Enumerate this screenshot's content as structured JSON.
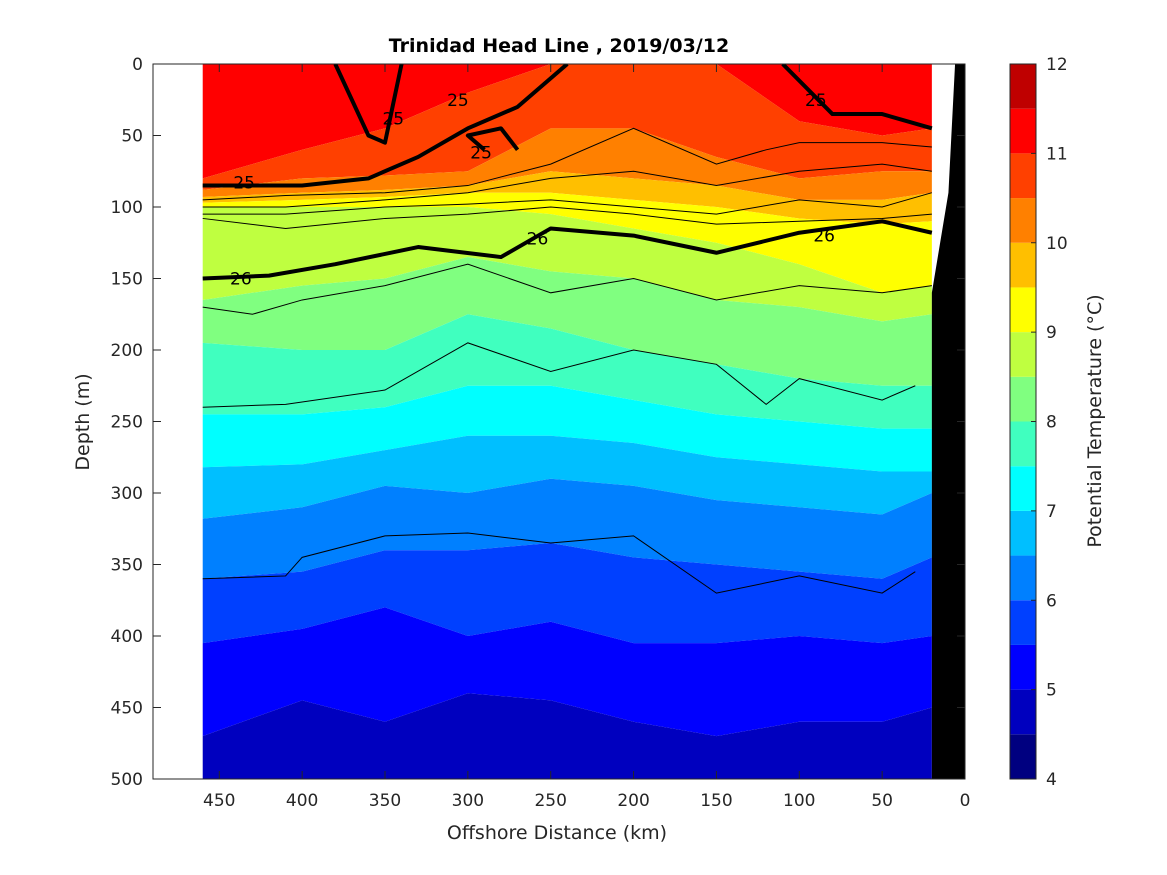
{
  "chart_data": {
    "type": "heatmap",
    "title": "Trinidad Head Line , 2019/03/12",
    "xlabel": "Offshore Distance (km)",
    "ylabel": "Depth (m)",
    "xlim": [
      490,
      0
    ],
    "ylim": [
      500,
      0
    ],
    "x_reversed": true,
    "y_reversed": true,
    "x_ticks": [
      450,
      400,
      350,
      300,
      250,
      200,
      150,
      100,
      50,
      0
    ],
    "y_ticks": [
      0,
      50,
      100,
      150,
      200,
      250,
      300,
      350,
      400,
      450,
      500
    ],
    "colorbar": {
      "label": "Potential Temperature (°C)",
      "ticks": [
        4,
        5,
        6,
        7,
        8,
        9,
        10,
        11,
        12
      ],
      "range": [
        4,
        12
      ],
      "colormap": "jet",
      "levels": [
        {
          "min": 4.0,
          "color": "#000080"
        },
        {
          "min": 4.5,
          "color": "#0000bf"
        },
        {
          "min": 5.0,
          "color": "#0000ff"
        },
        {
          "min": 5.5,
          "color": "#0040ff"
        },
        {
          "min": 6.0,
          "color": "#0080ff"
        },
        {
          "min": 6.5,
          "color": "#00bfff"
        },
        {
          "min": 7.0,
          "color": "#00ffff"
        },
        {
          "min": 7.5,
          "color": "#40ffbf"
        },
        {
          "min": 8.0,
          "color": "#80ff80"
        },
        {
          "min": 8.5,
          "color": "#bfff40"
        },
        {
          "min": 9.0,
          "color": "#ffff00"
        },
        {
          "min": 9.5,
          "color": "#ffbf00"
        },
        {
          "min": 10.0,
          "color": "#ff8000"
        },
        {
          "min": 10.5,
          "color": "#ff4000"
        },
        {
          "min": 11.0,
          "color": "#ff0000"
        },
        {
          "min": 11.5,
          "color": "#bf0000"
        }
      ]
    },
    "data_extent_km": [
      460,
      20
    ],
    "bands": [
      {
        "level": 11.0,
        "x": [
          460,
          400,
          350,
          300,
          250,
          200,
          150,
          100,
          50,
          20
        ],
        "top": [
          0,
          0,
          0,
          0,
          0,
          0,
          0,
          0,
          0,
          0
        ],
        "bottom": [
          80,
          60,
          45,
          20,
          0,
          0,
          0,
          40,
          50,
          45
        ]
      },
      {
        "level": 10.5,
        "x": [
          460,
          400,
          350,
          300,
          250,
          200,
          150,
          100,
          50,
          20
        ],
        "top": [
          80,
          60,
          45,
          20,
          0,
          0,
          0,
          40,
          50,
          45
        ],
        "bottom": [
          88,
          80,
          78,
          75,
          45,
          45,
          65,
          80,
          75,
          75
        ]
      },
      {
        "level": 10.0,
        "x": [
          460,
          400,
          350,
          300,
          250,
          200,
          150,
          100,
          50,
          20
        ],
        "top": [
          88,
          80,
          78,
          75,
          45,
          45,
          65,
          80,
          75,
          75
        ],
        "bottom": [
          93,
          90,
          88,
          85,
          75,
          80,
          85,
          95,
          95,
          90
        ]
      },
      {
        "level": 9.5,
        "x": [
          460,
          400,
          350,
          300,
          250,
          200,
          150,
          100,
          50,
          20
        ],
        "top": [
          93,
          90,
          88,
          85,
          75,
          80,
          85,
          95,
          95,
          90
        ],
        "bottom": [
          97,
          95,
          93,
          90,
          90,
          95,
          100,
          108,
          112,
          110
        ]
      },
      {
        "level": 9.0,
        "x": [
          460,
          400,
          350,
          300,
          250,
          200,
          150,
          100,
          50,
          20
        ],
        "top": [
          97,
          95,
          93,
          90,
          90,
          95,
          100,
          108,
          112,
          110
        ],
        "bottom": [
          100,
          100,
          100,
          100,
          105,
          115,
          125,
          140,
          160,
          155
        ]
      },
      {
        "level": 8.5,
        "x": [
          460,
          400,
          350,
          300,
          250,
          200,
          150,
          100,
          50,
          20
        ],
        "top": [
          100,
          100,
          100,
          100,
          105,
          115,
          125,
          140,
          160,
          155
        ],
        "bottom": [
          165,
          155,
          150,
          135,
          145,
          150,
          165,
          170,
          180,
          175
        ]
      },
      {
        "level": 8.0,
        "x": [
          460,
          400,
          350,
          300,
          250,
          200,
          150,
          100,
          50,
          20
        ],
        "top": [
          165,
          155,
          150,
          135,
          145,
          150,
          165,
          170,
          180,
          175
        ],
        "bottom": [
          195,
          200,
          200,
          175,
          185,
          200,
          210,
          220,
          225,
          225
        ]
      },
      {
        "level": 7.5,
        "x": [
          460,
          400,
          350,
          300,
          250,
          200,
          150,
          100,
          50,
          20
        ],
        "top": [
          195,
          200,
          200,
          175,
          185,
          200,
          210,
          220,
          225,
          225
        ],
        "bottom": [
          245,
          245,
          240,
          225,
          225,
          235,
          245,
          250,
          255,
          255
        ]
      },
      {
        "level": 7.0,
        "x": [
          460,
          400,
          350,
          300,
          250,
          200,
          150,
          100,
          50,
          20
        ],
        "top": [
          245,
          245,
          240,
          225,
          225,
          235,
          245,
          250,
          255,
          255
        ],
        "bottom": [
          282,
          280,
          270,
          260,
          260,
          265,
          275,
          280,
          285,
          285
        ]
      },
      {
        "level": 6.5,
        "x": [
          460,
          400,
          350,
          300,
          250,
          200,
          150,
          100,
          50,
          20
        ],
        "top": [
          282,
          280,
          270,
          260,
          260,
          265,
          275,
          280,
          285,
          285
        ],
        "bottom": [
          318,
          310,
          295,
          300,
          290,
          295,
          305,
          310,
          315,
          300
        ]
      },
      {
        "level": 6.0,
        "x": [
          460,
          400,
          350,
          300,
          250,
          200,
          150,
          100,
          50,
          20
        ],
        "top": [
          318,
          310,
          295,
          300,
          290,
          295,
          305,
          310,
          315,
          300
        ],
        "bottom": [
          360,
          355,
          340,
          340,
          335,
          345,
          350,
          355,
          360,
          345
        ]
      },
      {
        "level": 5.5,
        "x": [
          460,
          400,
          350,
          300,
          250,
          200,
          150,
          100,
          50,
          20
        ],
        "top": [
          360,
          355,
          340,
          340,
          335,
          345,
          350,
          355,
          360,
          345
        ],
        "bottom": [
          405,
          395,
          380,
          400,
          390,
          405,
          405,
          400,
          405,
          400
        ]
      },
      {
        "level": 5.0,
        "x": [
          460,
          400,
          350,
          300,
          250,
          200,
          150,
          100,
          50,
          20
        ],
        "top": [
          405,
          395,
          380,
          400,
          390,
          405,
          405,
          400,
          405,
          400
        ],
        "bottom": [
          470,
          445,
          460,
          440,
          445,
          460,
          470,
          460,
          460,
          450
        ]
      },
      {
        "level": 4.5,
        "x": [
          460,
          400,
          350,
          300,
          250,
          200,
          150,
          100,
          50,
          20
        ],
        "top": [
          470,
          445,
          460,
          440,
          445,
          460,
          470,
          460,
          460,
          450
        ],
        "bottom": [
          500,
          500,
          500,
          500,
          500,
          500,
          500,
          500,
          500,
          500
        ]
      }
    ],
    "thin_contours": [
      {
        "x": [
          460,
          410,
          350,
          300,
          250,
          200,
          150,
          120,
          100,
          50,
          20
        ],
        "y": [
          95,
          92,
          90,
          85,
          70,
          45,
          70,
          60,
          55,
          55,
          58
        ]
      },
      {
        "x": [
          460,
          410,
          350,
          300,
          250,
          200,
          150,
          100,
          50,
          20
        ],
        "y": [
          100,
          100,
          95,
          90,
          80,
          75,
          85,
          75,
          70,
          75
        ]
      },
      {
        "x": [
          460,
          410,
          350,
          300,
          250,
          200,
          150,
          100,
          50,
          20
        ],
        "y": [
          105,
          105,
          100,
          98,
          95,
          100,
          105,
          95,
          100,
          90
        ]
      },
      {
        "x": [
          460,
          410,
          350,
          300,
          250,
          200,
          150,
          100,
          50,
          20
        ],
        "y": [
          108,
          115,
          108,
          105,
          100,
          105,
          112,
          110,
          108,
          105
        ]
      },
      {
        "x": [
          460,
          430,
          400,
          350,
          300,
          250,
          200,
          150,
          100,
          50,
          20
        ],
        "y": [
          170,
          175,
          165,
          155,
          140,
          160,
          150,
          165,
          155,
          160,
          155
        ]
      },
      {
        "x": [
          460,
          410,
          350,
          300,
          250,
          200,
          150,
          120,
          100,
          50,
          30
        ],
        "y": [
          240,
          238,
          228,
          195,
          215,
          200,
          210,
          238,
          220,
          235,
          225
        ]
      },
      {
        "x": [
          460,
          410,
          400,
          350,
          300,
          250,
          200,
          150,
          100,
          50,
          30
        ],
        "y": [
          360,
          358,
          345,
          330,
          328,
          335,
          330,
          370,
          358,
          370,
          355
        ]
      }
    ],
    "bold_contours": [
      {
        "label": "25",
        "x": [
          460,
          400,
          360,
          330,
          300,
          270,
          240
        ],
        "y": [
          85,
          85,
          80,
          65,
          45,
          30,
          0
        ]
      },
      {
        "label": "25",
        "x": [
          380,
          360,
          350,
          340
        ],
        "y": [
          0,
          50,
          55,
          0
        ]
      },
      {
        "label": "25",
        "x": [
          290,
          300,
          280,
          270
        ],
        "y": [
          60,
          50,
          45,
          60
        ]
      },
      {
        "label": "26",
        "x": [
          460,
          420,
          380,
          330,
          280,
          250,
          200,
          150,
          100,
          50,
          20
        ],
        "y": [
          150,
          148,
          140,
          128,
          135,
          115,
          120,
          132,
          118,
          110,
          118
        ]
      },
      {
        "label": "25",
        "x": [
          110,
          80,
          50,
          20
        ],
        "y": [
          0,
          35,
          35,
          45
        ]
      }
    ],
    "contour_labels": [
      {
        "text": "25",
        "x": 435,
        "y": 83
      },
      {
        "text": "25",
        "x": 345,
        "y": 38
      },
      {
        "text": "25",
        "x": 306,
        "y": 25
      },
      {
        "text": "25",
        "x": 292,
        "y": 62
      },
      {
        "text": "26",
        "x": 437,
        "y": 150
      },
      {
        "text": "26",
        "x": 258,
        "y": 122
      },
      {
        "text": "26",
        "x": 85,
        "y": 120
      },
      {
        "text": "25",
        "x": 90,
        "y": 25
      }
    ]
  }
}
